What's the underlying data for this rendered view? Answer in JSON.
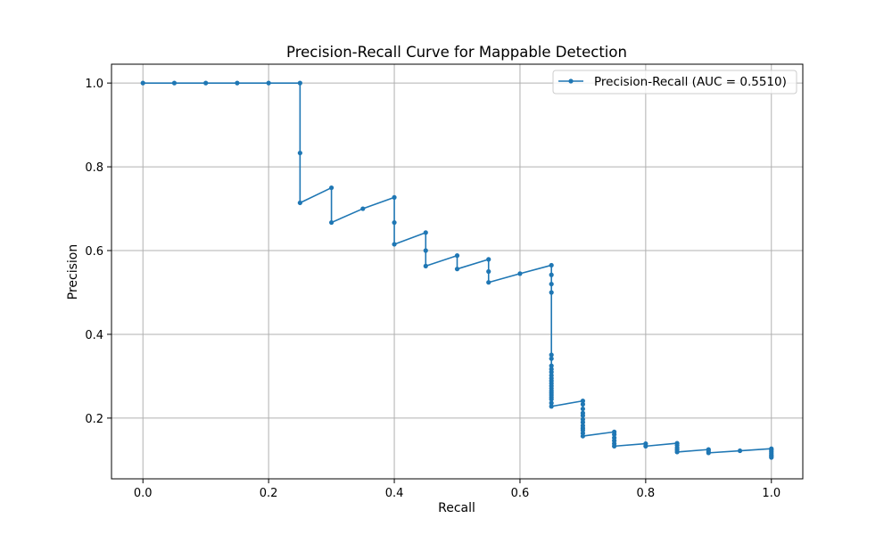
{
  "chart_data": {
    "type": "line",
    "title": "Precision-Recall Curve for Mappable Detection",
    "xlabel": "Recall",
    "ylabel": "Precision",
    "xlim": [
      -0.05,
      1.05
    ],
    "ylim": [
      0.055,
      1.045
    ],
    "xticks": [
      0.0,
      0.2,
      0.4,
      0.6,
      0.8,
      1.0
    ],
    "yticks": [
      0.2,
      0.4,
      0.6,
      0.8,
      1.0
    ],
    "xtick_labels": [
      "0.0",
      "0.2",
      "0.4",
      "0.6",
      "0.8",
      "1.0"
    ],
    "ytick_labels": [
      "0.2",
      "0.4",
      "0.6",
      "0.8",
      "1.0"
    ],
    "grid": true,
    "legend_position": "top-right",
    "series": [
      {
        "name": "Precision-Recall (AUC = 0.5510)",
        "color": "#1f77b4",
        "marker": "circle",
        "points": [
          [
            0.0,
            1.0
          ],
          [
            0.05,
            1.0
          ],
          [
            0.1,
            1.0
          ],
          [
            0.15,
            1.0
          ],
          [
            0.2,
            1.0
          ],
          [
            0.25,
            1.0
          ],
          [
            0.25,
            0.833
          ],
          [
            0.25,
            0.714
          ],
          [
            0.3,
            0.75
          ],
          [
            0.3,
            0.667
          ],
          [
            0.35,
            0.7
          ],
          [
            0.4,
            0.727
          ],
          [
            0.4,
            0.667
          ],
          [
            0.4,
            0.615
          ],
          [
            0.45,
            0.643
          ],
          [
            0.45,
            0.6
          ],
          [
            0.45,
            0.563
          ],
          [
            0.5,
            0.588
          ],
          [
            0.5,
            0.556
          ],
          [
            0.55,
            0.579
          ],
          [
            0.55,
            0.55
          ],
          [
            0.55,
            0.524
          ],
          [
            0.6,
            0.545
          ],
          [
            0.65,
            0.565
          ],
          [
            0.65,
            0.542
          ],
          [
            0.65,
            0.52
          ],
          [
            0.65,
            0.5
          ],
          [
            0.65,
            0.351
          ],
          [
            0.65,
            0.342
          ],
          [
            0.65,
            0.325
          ],
          [
            0.65,
            0.317
          ],
          [
            0.65,
            0.31
          ],
          [
            0.65,
            0.302
          ],
          [
            0.65,
            0.295
          ],
          [
            0.65,
            0.289
          ],
          [
            0.65,
            0.283
          ],
          [
            0.65,
            0.277
          ],
          [
            0.65,
            0.271
          ],
          [
            0.65,
            0.265
          ],
          [
            0.65,
            0.26
          ],
          [
            0.65,
            0.255
          ],
          [
            0.65,
            0.25
          ],
          [
            0.65,
            0.245
          ],
          [
            0.65,
            0.236
          ],
          [
            0.65,
            0.228
          ],
          [
            0.7,
            0.241
          ],
          [
            0.7,
            0.233
          ],
          [
            0.7,
            0.222
          ],
          [
            0.7,
            0.212
          ],
          [
            0.7,
            0.206
          ],
          [
            0.7,
            0.197
          ],
          [
            0.7,
            0.19
          ],
          [
            0.7,
            0.182
          ],
          [
            0.7,
            0.176
          ],
          [
            0.7,
            0.171
          ],
          [
            0.7,
            0.164
          ],
          [
            0.7,
            0.157
          ],
          [
            0.75,
            0.167
          ],
          [
            0.75,
            0.161
          ],
          [
            0.75,
            0.153
          ],
          [
            0.75,
            0.146
          ],
          [
            0.75,
            0.139
          ],
          [
            0.75,
            0.133
          ],
          [
            0.8,
            0.139
          ],
          [
            0.8,
            0.133
          ],
          [
            0.85,
            0.14
          ],
          [
            0.85,
            0.135
          ],
          [
            0.85,
            0.129
          ],
          [
            0.85,
            0.124
          ],
          [
            0.85,
            0.119
          ],
          [
            0.9,
            0.125
          ],
          [
            0.9,
            0.121
          ],
          [
            0.9,
            0.117
          ],
          [
            0.95,
            0.122
          ],
          [
            1.0,
            0.127
          ],
          [
            1.0,
            0.124
          ],
          [
            1.0,
            0.12
          ],
          [
            1.0,
            0.116
          ],
          [
            1.0,
            0.112
          ],
          [
            1.0,
            0.109
          ],
          [
            1.0,
            0.106
          ]
        ]
      }
    ]
  }
}
